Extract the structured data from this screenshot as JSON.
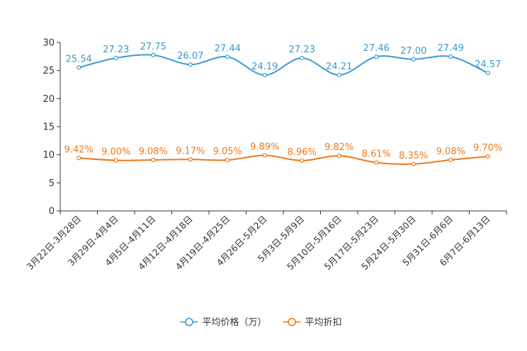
{
  "chart_data": {
    "type": "line",
    "title": "",
    "categories": [
      "3月22日-3月28日",
      "3月29日-4月4日",
      "4月5日-4月11日",
      "4月12日-4月18日",
      "4月19日-4月25日",
      "4月26日-5月2日",
      "5月3日-5月9日",
      "5月10日-5月16日",
      "5月17日-5月23日",
      "5月24日-5月30日",
      "5月31日-6月6日",
      "6月7日-6月13日"
    ],
    "ylim": [
      0,
      30
    ],
    "yticks": [
      0,
      5,
      10,
      15,
      20,
      25,
      30
    ],
    "series": [
      {
        "name": "平均价格（万）",
        "color": "#3a9ad1",
        "values": [
          25.54,
          27.23,
          27.75,
          26.07,
          27.44,
          24.19,
          27.23,
          24.21,
          27.46,
          27.0,
          27.49,
          24.57
        ],
        "labels": [
          "25.54",
          "27.23",
          "27.75",
          "26.07",
          "27.44",
          "24.19",
          "27.23",
          "24.21",
          "27.46",
          "27.00",
          "27.49",
          "24.57"
        ]
      },
      {
        "name": "平均折扣",
        "color": "#f07818",
        "values": [
          9.42,
          9.0,
          9.08,
          9.17,
          9.05,
          9.89,
          8.96,
          9.82,
          8.61,
          8.35,
          9.08,
          9.7
        ],
        "labels": [
          "9.42%",
          "9.00%",
          "9.08%",
          "9.17%",
          "9.05%",
          "9.89%",
          "8.96%",
          "9.82%",
          "8.61%",
          "8.35%",
          "9.08%",
          "9.70%"
        ]
      }
    ],
    "legend_position": "bottom-center"
  }
}
